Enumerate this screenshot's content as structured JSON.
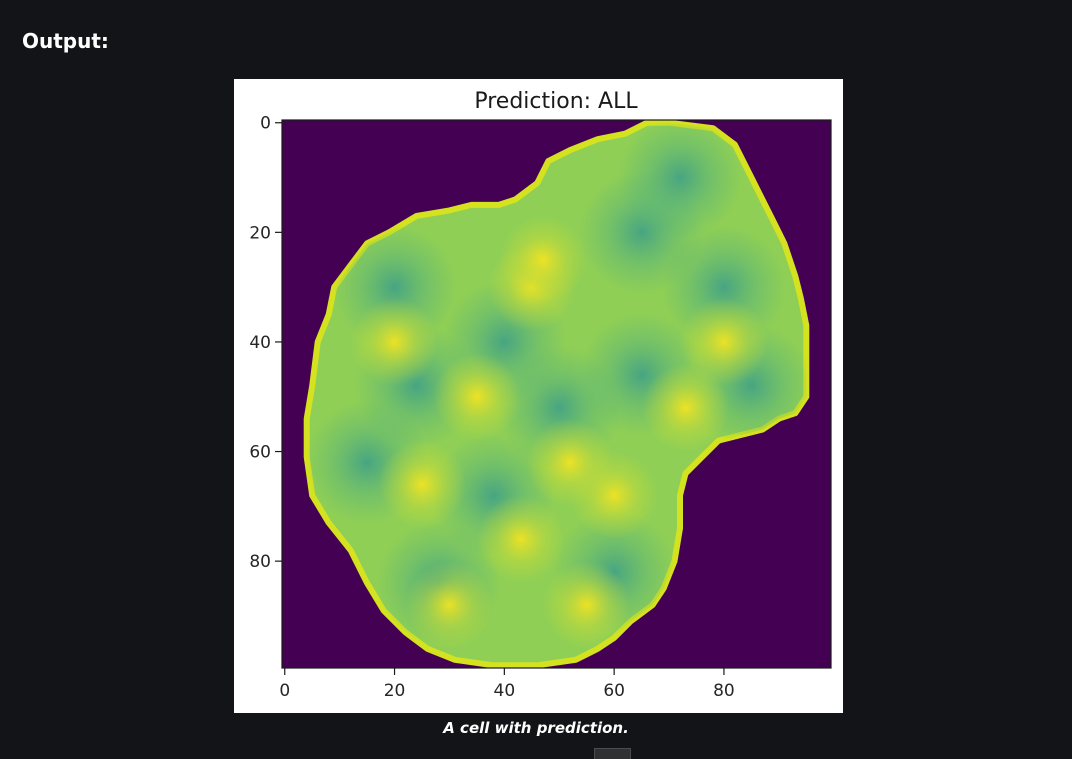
{
  "article": {
    "heading": "Output:",
    "caption": "A cell with prediction."
  },
  "chart_data": {
    "type": "heatmap",
    "title": "Prediction: ALL",
    "colormap": "viridis",
    "background_color": "#440154",
    "xlim": [
      0,
      99
    ],
    "ylim": [
      99,
      0
    ],
    "x_ticks": [
      "0",
      "20",
      "40",
      "60",
      "80"
    ],
    "y_ticks": [
      "0",
      "20",
      "40",
      "60",
      "80"
    ],
    "cell_outline": [
      [
        70,
        0
      ],
      [
        78,
        1
      ],
      [
        82,
        4
      ],
      [
        85,
        10
      ],
      [
        87,
        14
      ],
      [
        89,
        18
      ],
      [
        91,
        22
      ],
      [
        93,
        28
      ],
      [
        94,
        32
      ],
      [
        95,
        37
      ],
      [
        95,
        44
      ],
      [
        95,
        50
      ],
      [
        93,
        53
      ],
      [
        90,
        54
      ],
      [
        87,
        56
      ],
      [
        83,
        57
      ],
      [
        79,
        58
      ],
      [
        76,
        61
      ],
      [
        73,
        64
      ],
      [
        72,
        68
      ],
      [
        72,
        74
      ],
      [
        71,
        80
      ],
      [
        69,
        85
      ],
      [
        67,
        88
      ],
      [
        63,
        91
      ],
      [
        60,
        94
      ],
      [
        57,
        96
      ],
      [
        53,
        98
      ],
      [
        46,
        99
      ],
      [
        38,
        99
      ],
      [
        31,
        98
      ],
      [
        26,
        96
      ],
      [
        22,
        93
      ],
      [
        18,
        89
      ],
      [
        15,
        84
      ],
      [
        12,
        78
      ],
      [
        8,
        73
      ],
      [
        5,
        68
      ],
      [
        4,
        61
      ],
      [
        4,
        54
      ],
      [
        5,
        48
      ],
      [
        6,
        40
      ],
      [
        8,
        35
      ],
      [
        9,
        30
      ],
      [
        12,
        26
      ],
      [
        15,
        22
      ],
      [
        19,
        20
      ],
      [
        24,
        17
      ],
      [
        30,
        16
      ],
      [
        34,
        15
      ],
      [
        39,
        15
      ],
      [
        42,
        14
      ],
      [
        46,
        11
      ],
      [
        48,
        7
      ],
      [
        52,
        5
      ],
      [
        57,
        3
      ],
      [
        62,
        2
      ],
      [
        66,
        0
      ]
    ],
    "bright_spots": [
      [
        45,
        30
      ],
      [
        47,
        25
      ],
      [
        35,
        50
      ],
      [
        52,
        62
      ],
      [
        60,
        68
      ],
      [
        43,
        76
      ],
      [
        73,
        52
      ],
      [
        30,
        88
      ],
      [
        55,
        88
      ],
      [
        80,
        40
      ],
      [
        20,
        40
      ],
      [
        25,
        66
      ]
    ],
    "dark_spots": [
      [
        65,
        20
      ],
      [
        80,
        30
      ],
      [
        65,
        46
      ],
      [
        50,
        52
      ],
      [
        24,
        48
      ],
      [
        15,
        62
      ],
      [
        38,
        68
      ],
      [
        28,
        84
      ],
      [
        60,
        82
      ],
      [
        85,
        48
      ],
      [
        40,
        40
      ],
      [
        72,
        10
      ],
      [
        20,
        30
      ]
    ]
  }
}
